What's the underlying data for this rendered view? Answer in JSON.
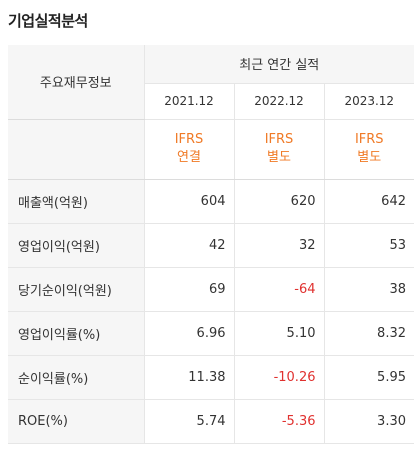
{
  "title": "기업실적분석",
  "header": {
    "row_label": "주요재무정보",
    "group_label": "최근 연간 실적",
    "years": [
      "2021.12",
      "2022.12",
      "2023.12"
    ],
    "standards": [
      {
        "line1": "IFRS",
        "line2": "연결"
      },
      {
        "line1": "IFRS",
        "line2": "별도"
      },
      {
        "line1": "IFRS",
        "line2": "별도"
      }
    ]
  },
  "rows": [
    {
      "label": "매출액(억원)",
      "values": [
        "604",
        "620",
        "642"
      ]
    },
    {
      "label": "영업이익(억원)",
      "values": [
        "42",
        "32",
        "53"
      ]
    },
    {
      "label": "당기순이익(억원)",
      "values": [
        "69",
        "-64",
        "38"
      ]
    },
    {
      "label": "영업이익률(%)",
      "values": [
        "6.96",
        "5.10",
        "8.32"
      ]
    },
    {
      "label": "순이익률(%)",
      "values": [
        "11.38",
        "-10.26",
        "5.95"
      ]
    },
    {
      "label": "ROE(%)",
      "values": [
        "5.74",
        "-5.36",
        "3.30"
      ]
    }
  ],
  "colors": {
    "standard_text": "#f07a26",
    "negative_text": "#e0312f",
    "label_bg": "#f6f6f6"
  }
}
